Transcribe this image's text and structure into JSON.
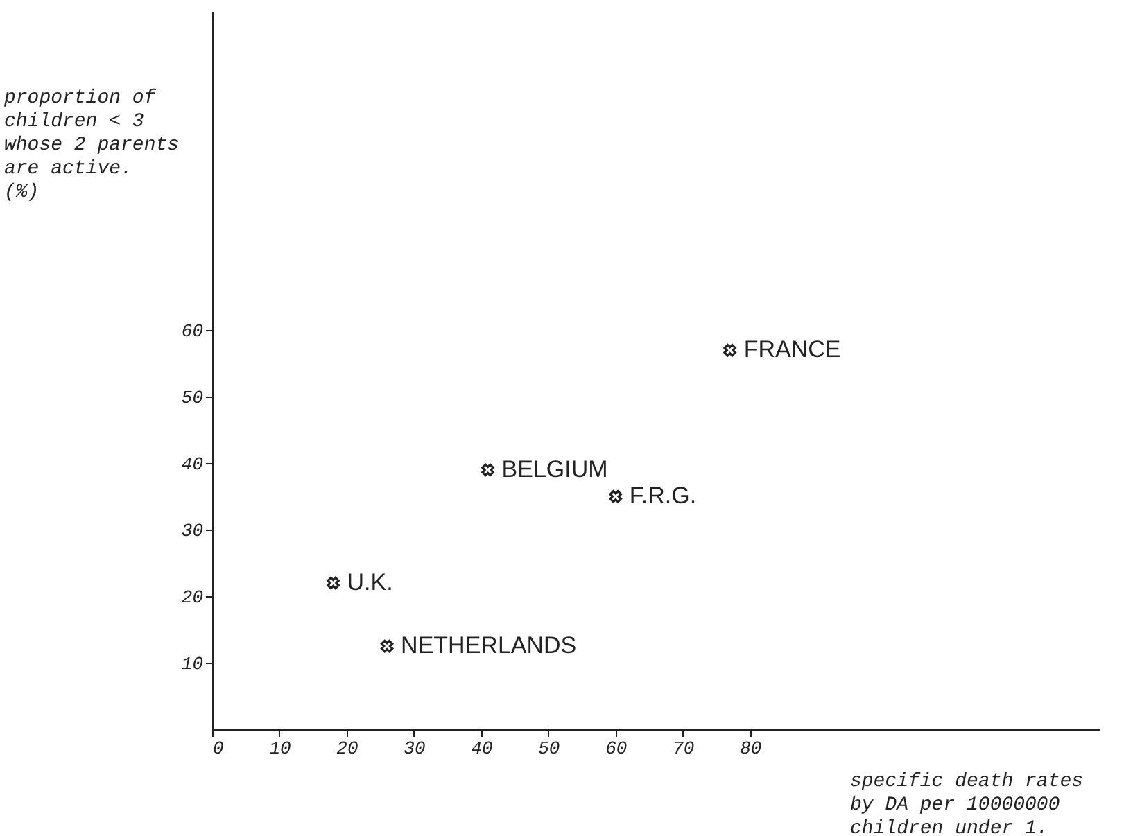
{
  "chart_data": {
    "type": "scatter",
    "xlabel": "specific death rates\nby  DA per 10000000\nchildren under 1.",
    "ylabel": "proportion of\nchildren < 3\nwhose 2 parents\nare active.\n  (%)",
    "x": [
      77,
      60,
      41,
      18,
      26
    ],
    "series": [
      {
        "color": "#222222",
        "values": [
          57,
          35,
          39,
          22,
          12.5
        ]
      }
    ],
    "annotations": [
      {
        "text": "FRANCE",
        "x": 77,
        "y": 57
      },
      {
        "text": "F.R.G.",
        "x": 60,
        "y": 35
      },
      {
        "text": "BELGIUM",
        "x": 41,
        "y": 39
      },
      {
        "text": "U.K.",
        "x": 18,
        "y": 22
      },
      {
        "text": "NETHERLANDS",
        "x": 26,
        "y": 12.5
      }
    ],
    "xlim": [
      0,
      132
    ],
    "ylim": [
      0,
      108
    ],
    "xticks": [
      0,
      10,
      20,
      30,
      40,
      50,
      60,
      70,
      80
    ],
    "yticks": [
      10,
      20,
      30,
      40,
      50,
      60
    ],
    "marker": "cross",
    "grid": false
  }
}
